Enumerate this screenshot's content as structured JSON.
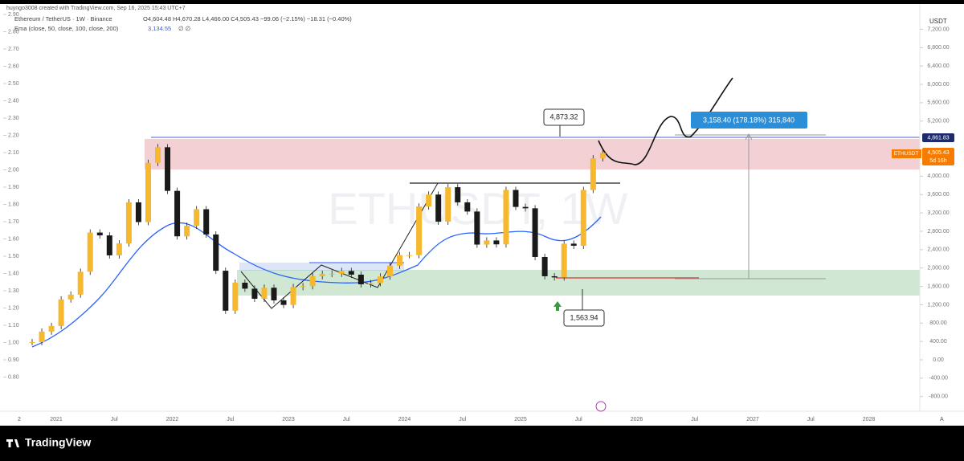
{
  "header": {
    "author_line": "huyngo3008 created with TradingView.com, Sep 16, 2025 15:43 UTC+7",
    "symbol": "Ethereum / TetherUS · 1W · Binance",
    "ohlc": "O4,604.48 H4,670.28 L4,466.00 C4,505.43 −99.06 (−2.15%) −18.31 (−0.40%)",
    "ema_label": "Ema (close, 50, close, 100, close, 200)",
    "ema_value": "3,134.55",
    "ema_rest": "∅ ∅"
  },
  "chart": {
    "watermark": "ETHUSDT, 1W",
    "currency": "USDT",
    "closes": [
      385,
      615,
      737,
      1315,
      1420,
      1918,
      2772,
      2710,
      2275,
      2535,
      3430,
      3000,
      4290,
      4630,
      3680,
      2690,
      2920,
      3280,
      2730,
      1940,
      1070,
      1680,
      1550,
      1330,
      1570,
      1295,
      1196,
      1585,
      1605,
      1820,
      1870,
      1875,
      1935,
      1855,
      1645,
      1670,
      1815,
      2050,
      2280,
      2280,
      3340,
      3600,
      3010,
      3760,
      3430,
      3230,
      2510,
      2600,
      2515,
      3700,
      3330,
      3300,
      2240,
      1820,
      1795,
      2530,
      2485,
      3700,
      4390,
      4505.43
    ],
    "price_ticks": [
      {
        "value": 7200,
        "label": "7,200.00"
      },
      {
        "value": 6800,
        "label": "6,800.00"
      },
      {
        "value": 6400,
        "label": "6,400.00"
      },
      {
        "value": 6000,
        "label": "6,000.00"
      },
      {
        "value": 5600,
        "label": "5,600.00"
      },
      {
        "value": 5200,
        "label": "5,200.00"
      },
      {
        "value": 4000,
        "label": "4,000.00"
      },
      {
        "value": 3600,
        "label": "3,600.00"
      },
      {
        "value": 3200,
        "label": "3,200.00"
      },
      {
        "value": 2800,
        "label": "2,800.00"
      },
      {
        "value": 2400,
        "label": "2,400.00"
      },
      {
        "value": 2000,
        "label": "2,000.00"
      },
      {
        "value": 1600,
        "label": "1,600.00"
      },
      {
        "value": 1200,
        "label": "1,200.00"
      },
      {
        "value": 800,
        "label": "800.00"
      },
      {
        "value": 400,
        "label": "400.00"
      },
      {
        "value": 0,
        "label": "0.00"
      },
      {
        "value": -400,
        "label": "-400.00"
      },
      {
        "value": -800,
        "label": "-800.00"
      }
    ],
    "left_ticks": [
      {
        "value": 2.9,
        "label": "2.90"
      },
      {
        "value": 2.8,
        "label": "2.80"
      },
      {
        "value": 2.7,
        "label": "2.70"
      },
      {
        "value": 2.6,
        "label": "2.60"
      },
      {
        "value": 2.5,
        "label": "2.50"
      },
      {
        "value": 2.4,
        "label": "2.40"
      },
      {
        "value": 2.3,
        "label": "2.30"
      },
      {
        "value": 2.2,
        "label": "2.20"
      },
      {
        "value": 2.1,
        "label": "2.10"
      },
      {
        "value": 2,
        "label": "2.00"
      },
      {
        "value": 1.9,
        "label": "1.90"
      },
      {
        "value": 1.8,
        "label": "1.80"
      },
      {
        "value": 1.7,
        "label": "1.70"
      },
      {
        "value": 1.6,
        "label": "1.60"
      },
      {
        "value": 1.5,
        "label": "1.50"
      },
      {
        "value": 1.4,
        "label": "1.40"
      },
      {
        "value": 1.3,
        "label": "1.30"
      },
      {
        "value": 1.2,
        "label": "1.20"
      },
      {
        "value": 1.1,
        "label": "1.10"
      },
      {
        "value": 1,
        "label": "1.00"
      },
      {
        "value": 0.9,
        "label": "0.90"
      },
      {
        "value": 0.8,
        "label": "0.80"
      }
    ],
    "time_labels": [
      "2021",
      "Jul",
      "2022",
      "Jul",
      "2023",
      "Jul",
      "2024",
      "Jul",
      "2025",
      "Jul",
      "2026",
      "Jul",
      "2027",
      "Jul",
      "2028"
    ],
    "corner_left": "2",
    "corner_right": "A",
    "high_callout": "4,873.32",
    "low_callout": "1,563.94",
    "measure_label": "3,158.40 (178.18%) 315,840",
    "resistance_label": "4,861.83",
    "symbol_tag": "ETHUSDT",
    "last_price": "4,505.43",
    "countdown": "5d 16h"
  },
  "footer": {
    "brand": "TradingView"
  }
}
